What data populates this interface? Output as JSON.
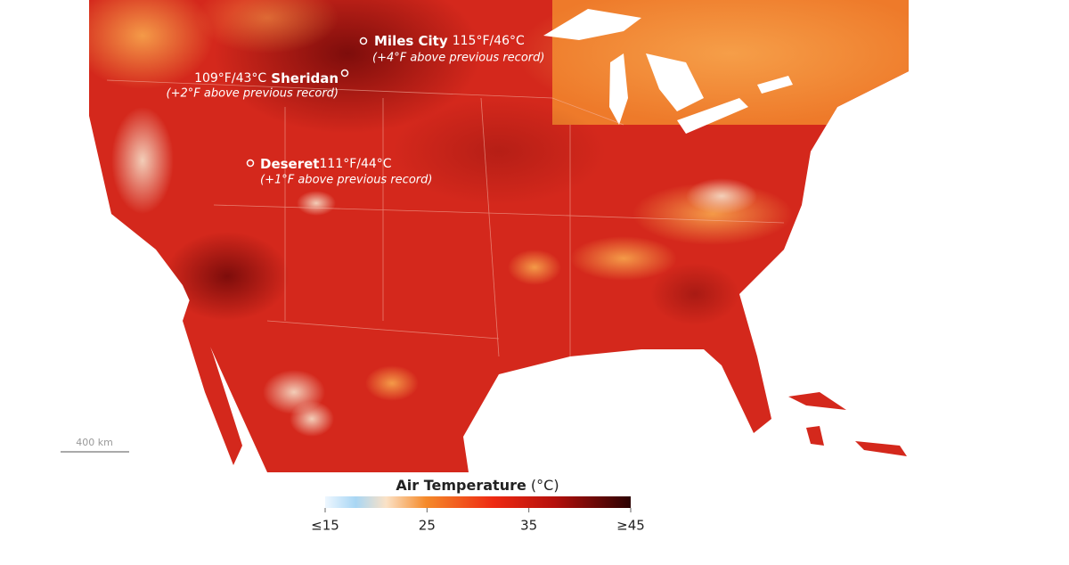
{
  "annotations": [
    {
      "name": "Miles City",
      "reading": "115°F/46°C",
      "note": "(+4°F above previous record)"
    },
    {
      "name": "Sheridan",
      "reading": "109°F/43°C",
      "note": "(+2°F above previous record)"
    },
    {
      "name": "Deseret",
      "reading": "111°F/44°C",
      "note": "(+1°F above previous record)"
    }
  ],
  "scale_bar": "400 km",
  "legend": {
    "title": "Air Temperature",
    "unit": "(°C)",
    "range": [
      15,
      45
    ],
    "ticks": [
      {
        "value": 15,
        "label": "≤15"
      },
      25,
      35,
      {
        "value": 45,
        "label": "≥45"
      }
    ]
  }
}
